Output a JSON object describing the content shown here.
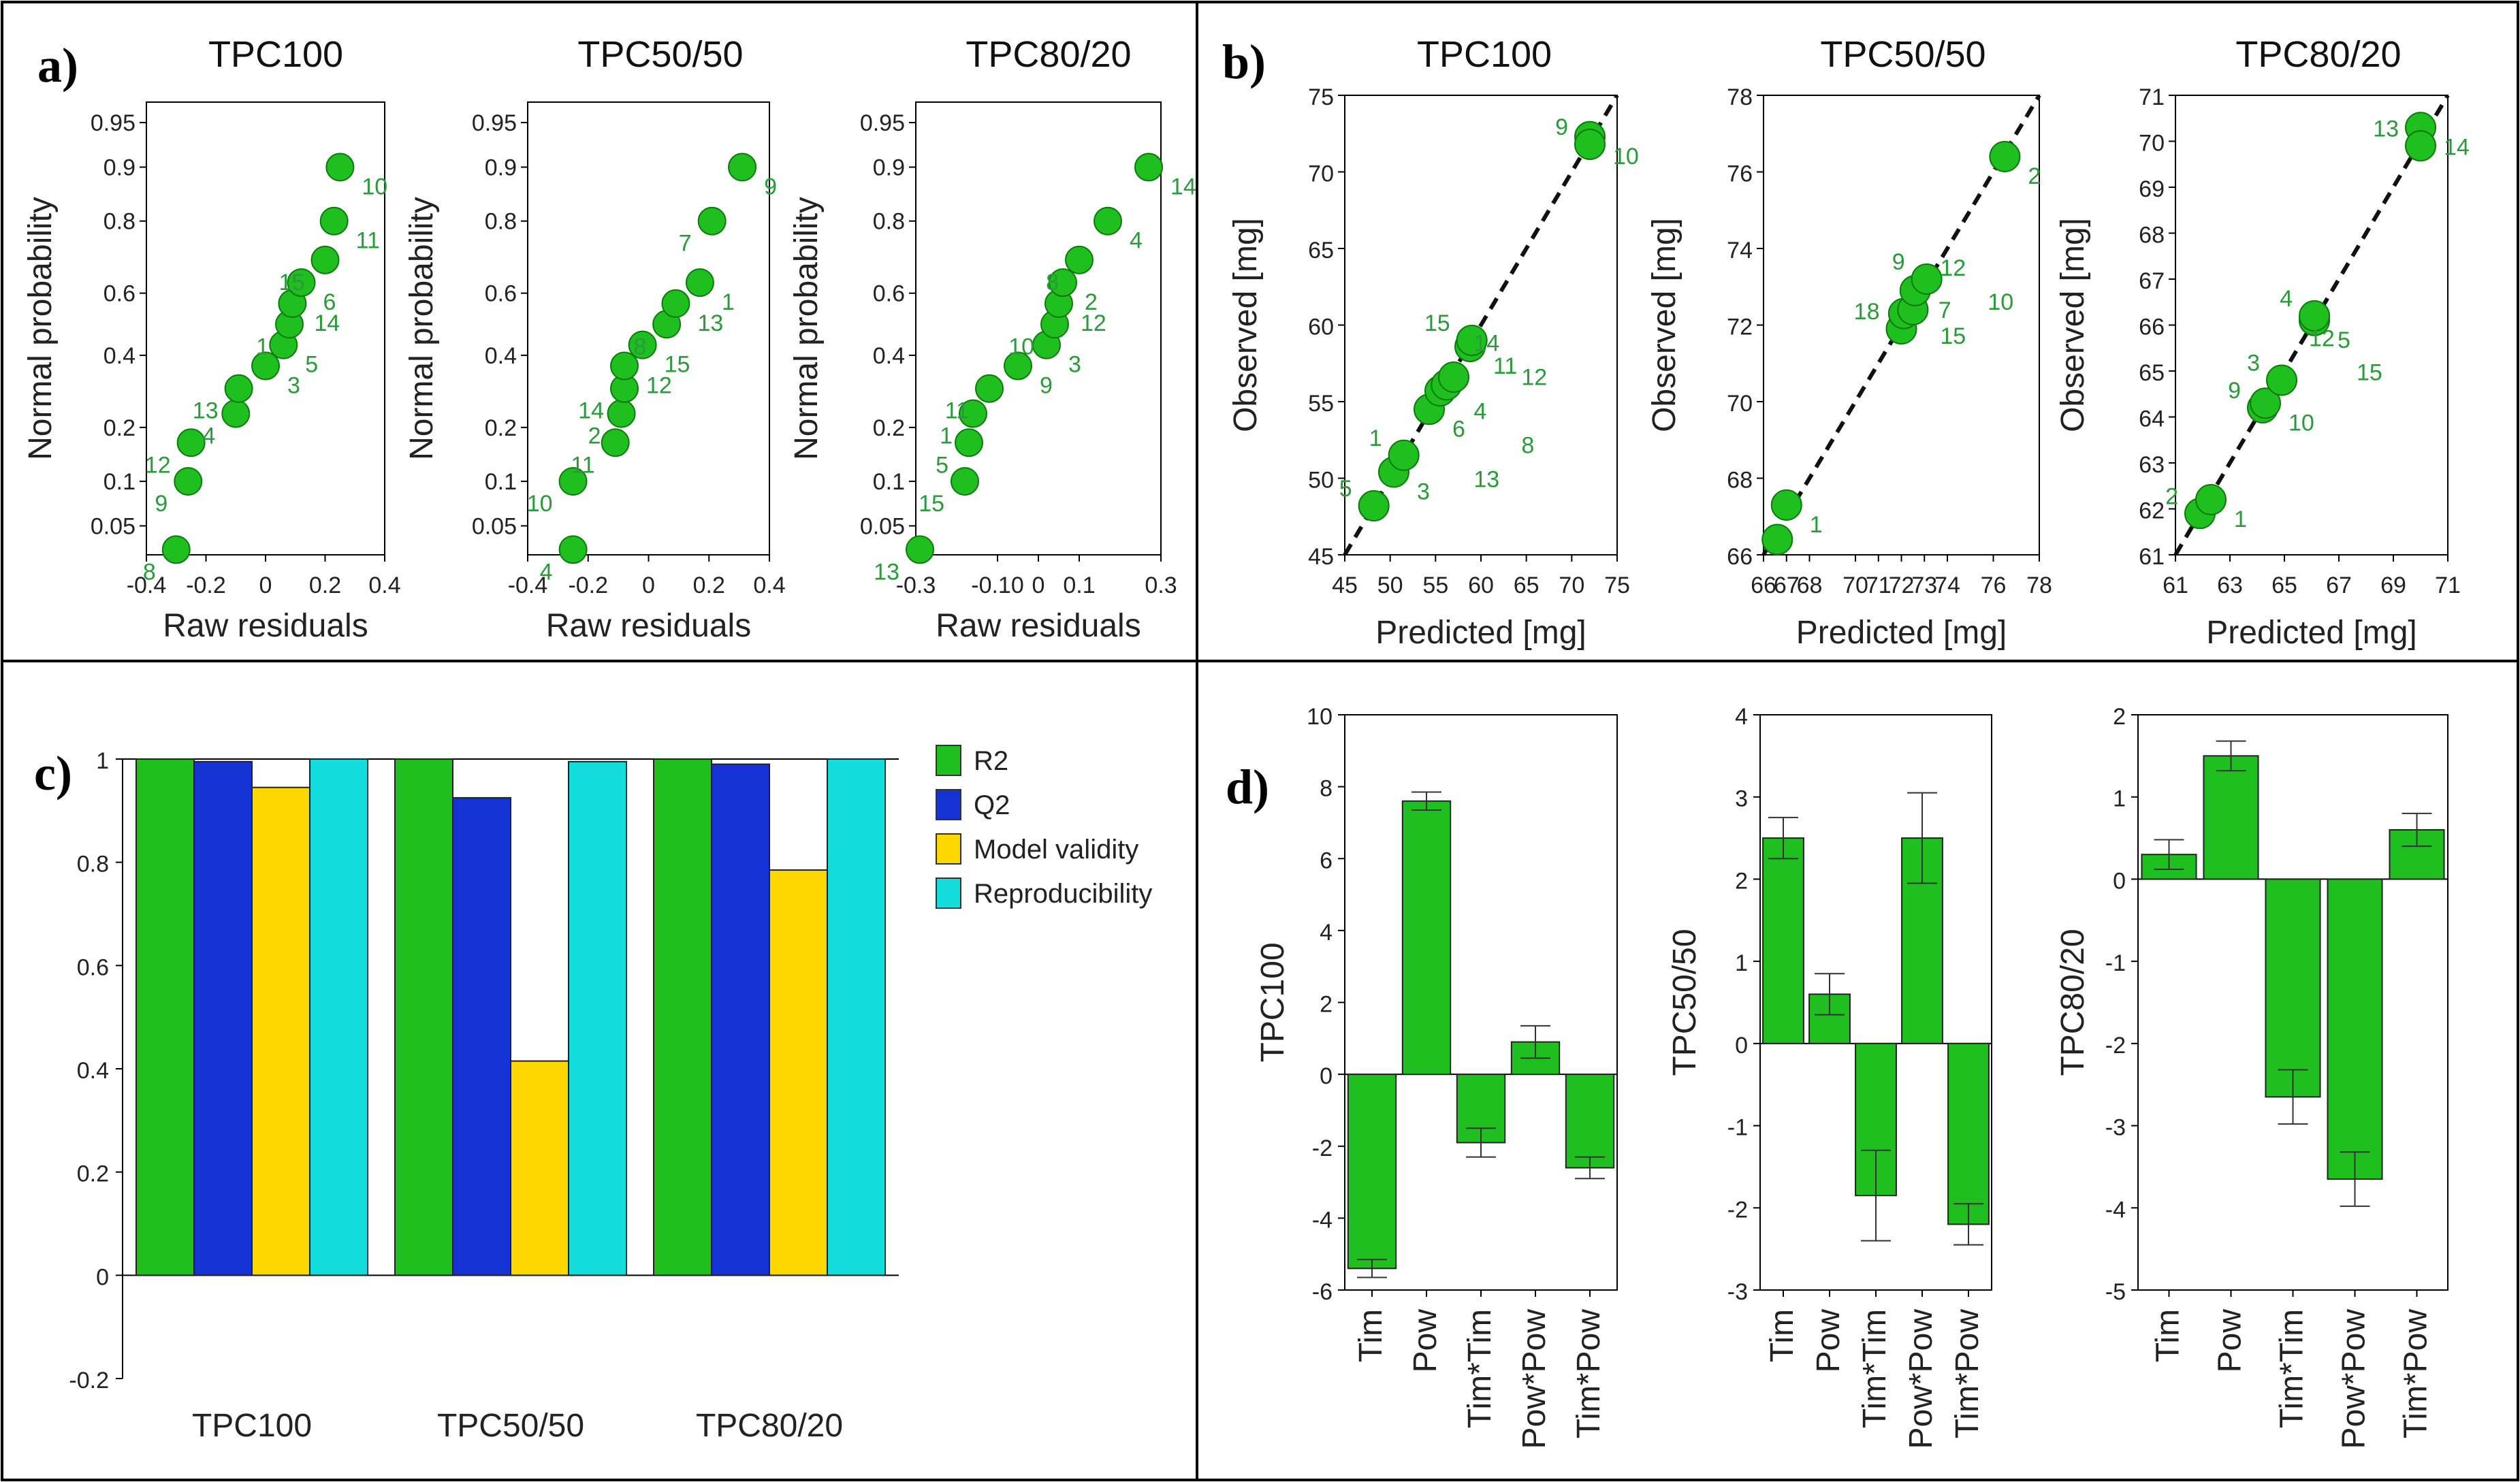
{
  "figure": {
    "panels": {
      "a": "a)",
      "b": "b)",
      "c": "c)",
      "d": "d)"
    },
    "titles": {
      "tpc100": "TPC100",
      "tpc5050": "TPC50/50",
      "tpc8020": "TPC80/20"
    }
  },
  "chart_data": [
    {
      "id": "a1",
      "panel": "a",
      "type": "scatter",
      "subtype": "normal-probability",
      "title": "TPC100",
      "xlabel": "Raw residuals",
      "ylabel": "Normal probability",
      "xlim": [
        -0.4,
        0.4
      ],
      "xticks": [
        -0.4,
        -0.2,
        0,
        0.2,
        0.4
      ],
      "xtick_labels": [
        "-0.4",
        "-0.2",
        "0",
        "0.2",
        "0.4"
      ],
      "yticks": [
        0.05,
        0.1,
        0.2,
        0.4,
        0.6,
        0.8,
        0.9,
        0.95
      ],
      "ytick_labels": [
        "0.05",
        "0.1",
        "0.2",
        "0.4",
        "0.6",
        "0.8",
        "0.9",
        "0.95"
      ],
      "points": [
        {
          "label": "8",
          "x": -0.3,
          "y": 0.033
        },
        {
          "label": "9",
          "x": -0.26,
          "y": 0.1
        },
        {
          "label": "12",
          "x": -0.25,
          "y": 0.167
        },
        {
          "label": "4",
          "x": -0.1,
          "y": 0.233
        },
        {
          "label": "13",
          "x": -0.09,
          "y": 0.3
        },
        {
          "label": "3",
          "x": 0.0,
          "y": 0.367
        },
        {
          "label": "5",
          "x": 0.06,
          "y": 0.433
        },
        {
          "label": "1",
          "x": 0.08,
          "y": 0.5
        },
        {
          "label": "14",
          "x": 0.09,
          "y": 0.567
        },
        {
          "label": "6",
          "x": 0.12,
          "y": 0.633
        },
        {
          "label": "15",
          "x": 0.2,
          "y": 0.7
        },
        {
          "label": "11",
          "x": 0.23,
          "y": 0.8
        },
        {
          "label": "10",
          "x": 0.25,
          "y": 0.9
        }
      ]
    },
    {
      "id": "a2",
      "panel": "a",
      "type": "scatter",
      "subtype": "normal-probability",
      "title": "TPC50/50",
      "xlabel": "Raw residuals",
      "ylabel": "Normal probability",
      "xlim": [
        -0.4,
        0.4
      ],
      "xticks": [
        -0.4,
        -0.2,
        0,
        0.2,
        0.4
      ],
      "xtick_labels": [
        "-0.4",
        "-0.2",
        "0",
        "0.2",
        "0.4"
      ],
      "yticks": [
        0.05,
        0.1,
        0.2,
        0.4,
        0.6,
        0.8,
        0.9,
        0.95
      ],
      "ytick_labels": [
        "0.05",
        "0.1",
        "0.2",
        "0.4",
        "0.6",
        "0.8",
        "0.9",
        "0.95"
      ],
      "points": [
        {
          "label": "4",
          "x": -0.25,
          "y": 0.033
        },
        {
          "label": "10",
          "x": -0.25,
          "y": 0.1
        },
        {
          "label": "11",
          "x": -0.11,
          "y": 0.167
        },
        {
          "label": "2",
          "x": -0.09,
          "y": 0.233
        },
        {
          "label": "14",
          "x": -0.08,
          "y": 0.3
        },
        {
          "label": "12",
          "x": -0.08,
          "y": 0.367
        },
        {
          "label": "15",
          "x": -0.02,
          "y": 0.433
        },
        {
          "label": "8",
          "x": 0.06,
          "y": 0.5
        },
        {
          "label": "13",
          "x": 0.09,
          "y": 0.567
        },
        {
          "label": "1",
          "x": 0.17,
          "y": 0.633
        },
        {
          "label": "7",
          "x": 0.21,
          "y": 0.8
        },
        {
          "label": "9",
          "x": 0.31,
          "y": 0.9
        }
      ]
    },
    {
      "id": "a3",
      "panel": "a",
      "type": "scatter",
      "subtype": "normal-probability",
      "title": "TPC80/20",
      "xlabel": "Raw residuals",
      "ylabel": "Normal probability",
      "xlim": [
        -0.3,
        0.3
      ],
      "xticks": [
        -0.3,
        -0.1,
        0,
        0.1,
        0.3
      ],
      "xtick_labels": [
        "-0.3",
        "-0.10",
        "0",
        "0.1",
        "0.3"
      ],
      "yticks": [
        0.05,
        0.1,
        0.2,
        0.4,
        0.6,
        0.8,
        0.9,
        0.95
      ],
      "ytick_labels": [
        "0.05",
        "0.1",
        "0.2",
        "0.4",
        "0.6",
        "0.8",
        "0.9",
        "0.95"
      ],
      "points": [
        {
          "label": "13",
          "x": -0.29,
          "y": 0.033
        },
        {
          "label": "15",
          "x": -0.18,
          "y": 0.1
        },
        {
          "label": "5",
          "x": -0.17,
          "y": 0.167
        },
        {
          "label": "1",
          "x": -0.16,
          "y": 0.233
        },
        {
          "label": "11",
          "x": -0.12,
          "y": 0.3
        },
        {
          "label": "9",
          "x": -0.05,
          "y": 0.367
        },
        {
          "label": "3",
          "x": 0.02,
          "y": 0.433
        },
        {
          "label": "10",
          "x": 0.04,
          "y": 0.5
        },
        {
          "label": "12",
          "x": 0.05,
          "y": 0.567
        },
        {
          "label": "2",
          "x": 0.06,
          "y": 0.633
        },
        {
          "label": "8",
          "x": 0.1,
          "y": 0.7
        },
        {
          "label": "4",
          "x": 0.17,
          "y": 0.8
        },
        {
          "label": "14",
          "x": 0.27,
          "y": 0.9
        }
      ]
    },
    {
      "id": "b1",
      "panel": "b",
      "type": "scatter",
      "subtype": "observed-vs-predicted",
      "title": "TPC100",
      "xlabel": "Predicted [mg]",
      "ylabel": "Observed [mg]",
      "xlim": [
        45,
        75
      ],
      "ylim": [
        45,
        75
      ],
      "xticks": [
        45,
        50,
        55,
        60,
        65,
        70,
        75
      ],
      "xtick_labels": [
        "45",
        "50",
        "55",
        "60",
        "65",
        "70",
        "75"
      ],
      "yticks": [
        45,
        50,
        55,
        60,
        65,
        70,
        75
      ],
      "ytick_labels": [
        "45",
        "50",
        "55",
        "60",
        "65",
        "70",
        "75"
      ],
      "points": [
        {
          "label": "5",
          "x": 48.2,
          "y": 48.2
        },
        {
          "label": "3",
          "x": 50.4,
          "y": 50.4
        },
        {
          "label": "1",
          "x": 51.5,
          "y": 51.5
        },
        {
          "label": "6",
          "x": 54.3,
          "y": 54.5
        },
        {
          "label": "",
          "x": 55.5,
          "y": 55.7
        },
        {
          "label": "",
          "x": 56.2,
          "y": 56.1
        },
        {
          "label": "",
          "x": 57.0,
          "y": 56.6
        },
        {
          "label": "11",
          "x": 58.8,
          "y": 58.6
        },
        {
          "label": "15",
          "x": 59.0,
          "y": 59.0
        },
        {
          "label": "10",
          "x": 72.0,
          "y": 72.3
        },
        {
          "label": "9",
          "x": 72.0,
          "y": 71.8
        }
      ],
      "annotations": [
        "14",
        "12",
        "4",
        "8",
        "13"
      ]
    },
    {
      "id": "b2",
      "panel": "b",
      "type": "scatter",
      "subtype": "observed-vs-predicted",
      "title": "TPC50/50",
      "xlabel": "Predicted [mg]",
      "ylabel": "Observed [mg]",
      "xlim": [
        66,
        78
      ],
      "ylim": [
        66,
        78
      ],
      "xticks": [
        66,
        67,
        68,
        70,
        71,
        72,
        73,
        74,
        76,
        78
      ],
      "xtick_labels": [
        "66",
        "67",
        "68",
        "70",
        "71",
        "72",
        "73",
        "74",
        "76",
        "78"
      ],
      "yticks": [
        66,
        68,
        70,
        72,
        74,
        76,
        78
      ],
      "ytick_labels": [
        "66",
        "68",
        "70",
        "72",
        "74",
        "76",
        "78"
      ],
      "points": [
        {
          "label": "",
          "x": 66.6,
          "y": 66.4
        },
        {
          "label": "1",
          "x": 67.0,
          "y": 67.3
        },
        {
          "label": "18",
          "x": 72.0,
          "y": 71.9
        },
        {
          "label": "",
          "x": 72.1,
          "y": 72.3
        },
        {
          "label": "",
          "x": 72.5,
          "y": 72.4
        },
        {
          "label": "7",
          "x": 72.6,
          "y": 72.9
        },
        {
          "label": "9",
          "x": 73.1,
          "y": 73.2
        },
        {
          "label": "2",
          "x": 76.5,
          "y": 76.4
        }
      ],
      "annotations": [
        "12",
        "10",
        "15"
      ]
    },
    {
      "id": "b3",
      "panel": "b",
      "type": "scatter",
      "subtype": "observed-vs-predicted",
      "title": "TPC80/20",
      "xlabel": "Predicted [mg]",
      "ylabel": "Observed [mg]",
      "xlim": [
        61,
        71
      ],
      "ylim": [
        61,
        71
      ],
      "xticks": [
        61,
        63,
        65,
        67,
        69,
        71
      ],
      "xtick_labels": [
        "61",
        "63",
        "65",
        "67",
        "69",
        "71"
      ],
      "yticks": [
        61,
        62,
        63,
        64,
        65,
        66,
        67,
        68,
        69,
        70,
        71
      ],
      "ytick_labels": [
        "61",
        "62",
        "63",
        "64",
        "65",
        "66",
        "67",
        "68",
        "69",
        "70",
        "71"
      ],
      "points": [
        {
          "label": "2",
          "x": 61.9,
          "y": 61.9
        },
        {
          "label": "1",
          "x": 62.3,
          "y": 62.2
        },
        {
          "label": "9",
          "x": 64.2,
          "y": 64.2
        },
        {
          "label": "10",
          "x": 64.3,
          "y": 64.3
        },
        {
          "label": "3",
          "x": 64.9,
          "y": 64.8
        },
        {
          "label": "5",
          "x": 66.1,
          "y": 66.1
        },
        {
          "label": "4",
          "x": 66.1,
          "y": 66.2
        },
        {
          "label": "14",
          "x": 70.0,
          "y": 70.3
        },
        {
          "label": "13",
          "x": 70.0,
          "y": 69.9
        }
      ],
      "annotations": [
        "12",
        "15"
      ]
    },
    {
      "id": "c",
      "panel": "c",
      "type": "bar",
      "subtype": "summary-of-fit",
      "categories": [
        "TPC100",
        "TPC50/50",
        "TPC80/20"
      ],
      "ylim": [
        -0.2,
        1
      ],
      "yticks": [
        -0.2,
        0,
        0.2,
        0.4,
        0.6,
        0.8,
        1
      ],
      "ytick_labels": [
        "-0.2",
        "0",
        "0.2",
        "0.4",
        "0.6",
        "0.8",
        "1"
      ],
      "legend_position": "right",
      "series": [
        {
          "name": "R2",
          "color": "#1fbf1f",
          "values": [
            1.0,
            1.0,
            1.0
          ]
        },
        {
          "name": "Q2",
          "color": "#1532d4",
          "values": [
            0.995,
            0.925,
            0.99
          ]
        },
        {
          "name": "Model validity",
          "color": "#ffd700",
          "values": [
            0.945,
            0.415,
            0.785
          ]
        },
        {
          "name": "Reproducibility",
          "color": "#13dcdc",
          "values": [
            1.0,
            0.995,
            1.0
          ]
        }
      ]
    },
    {
      "id": "d1",
      "panel": "d",
      "type": "bar",
      "subtype": "coefficients",
      "ylabel": "TPC100",
      "categories": [
        "Tim",
        "Pow",
        "Tim*Tim",
        "Pow*Pow",
        "Tim*Pow"
      ],
      "ylim": [
        -6,
        10
      ],
      "yticks": [
        -6,
        -4,
        -2,
        0,
        2,
        4,
        6,
        8,
        10
      ],
      "ytick_labels": [
        "-6",
        "-4",
        "-2",
        "0",
        "2",
        "4",
        "6",
        "8",
        "10"
      ],
      "color": "#1fbf1f",
      "values": [
        -5.4,
        7.6,
        -1.9,
        0.9,
        -2.6
      ],
      "errors": [
        0.25,
        0.25,
        0.4,
        0.45,
        0.3
      ]
    },
    {
      "id": "d2",
      "panel": "d",
      "type": "bar",
      "subtype": "coefficients",
      "ylabel": "TPC50/50",
      "categories": [
        "Tim",
        "Pow",
        "Tim*Tim",
        "Pow*Pow",
        "Tim*Pow"
      ],
      "ylim": [
        -3,
        4
      ],
      "yticks": [
        -3,
        -2,
        -1,
        0,
        1,
        2,
        3,
        4
      ],
      "ytick_labels": [
        "-3",
        "-2",
        "-1",
        "0",
        "1",
        "2",
        "3",
        "4"
      ],
      "color": "#1fbf1f",
      "values": [
        2.5,
        0.6,
        -1.85,
        2.5,
        -2.2
      ],
      "errors": [
        0.25,
        0.25,
        0.55,
        0.55,
        0.25
      ]
    },
    {
      "id": "d3",
      "panel": "d",
      "type": "bar",
      "subtype": "coefficients",
      "ylabel": "TPC80/20",
      "categories": [
        "Tim",
        "Pow",
        "Tim*Tim",
        "Pow*Pow",
        "Tim*Pow"
      ],
      "ylim": [
        -5,
        2
      ],
      "yticks": [
        -5,
        -4,
        -3,
        -2,
        -1,
        0,
        1,
        2
      ],
      "ytick_labels": [
        "-5",
        "-4",
        "-3",
        "-2",
        "-1",
        "0",
        "1",
        "2"
      ],
      "color": "#1fbf1f",
      "values": [
        0.3,
        1.5,
        -2.65,
        -3.65,
        0.6
      ],
      "errors": [
        0.18,
        0.18,
        0.33,
        0.33,
        0.2
      ]
    }
  ]
}
